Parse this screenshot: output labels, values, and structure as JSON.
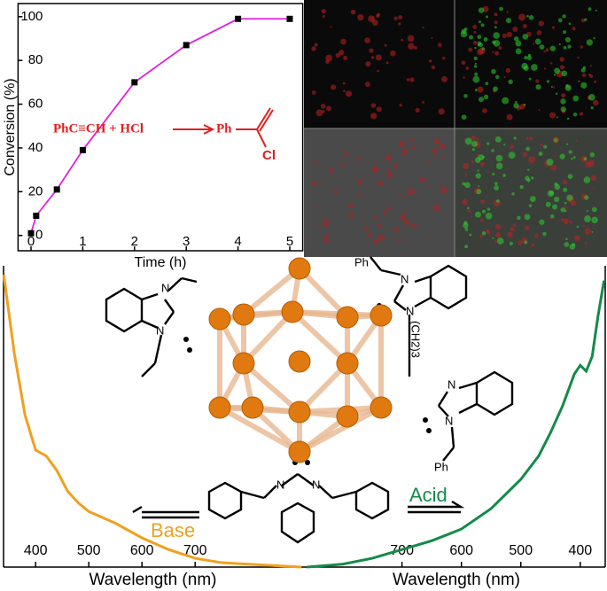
{
  "chart_data": [
    {
      "type": "line",
      "x": [
        0,
        0.1,
        0.5,
        1,
        2,
        3,
        4,
        5
      ],
      "values": [
        1,
        9,
        21,
        39,
        70,
        87,
        99,
        99
      ],
      "color": "#e020e0",
      "marker_color": "#000000",
      "xlim": [
        -0.25,
        5.25
      ],
      "ylim": [
        -7,
        106
      ],
      "xticks": [
        0,
        1,
        2,
        3,
        4,
        5
      ],
      "yticks": [
        0,
        20,
        40,
        60,
        80,
        100
      ],
      "x_label": "Time (h)",
      "y_label": "Conversion (%)",
      "annotation": {
        "reactants": "PhC≡CH + HCl",
        "product": "Ph",
        "substituent": "Cl",
        "color": "#e02020"
      }
    },
    {
      "type": "line",
      "x": [
        340,
        360,
        380,
        400,
        410,
        420,
        440,
        460,
        480,
        500,
        550,
        600,
        650,
        700,
        750,
        800,
        850,
        900
      ],
      "values": [
        1.0,
        0.73,
        0.52,
        0.4,
        0.39,
        0.38,
        0.33,
        0.26,
        0.22,
        0.19,
        0.15,
        0.1,
        0.06,
        0.03,
        0.015,
        0.01,
        0.005,
        0
      ],
      "color": "#f0a020",
      "xlim": [
        333,
        908
      ],
      "ylim": [
        0,
        1
      ],
      "xticks": [
        400,
        500,
        600,
        700
      ],
      "x_label": "Wavelength (nm)",
      "annotation": "Base"
    },
    {
      "type": "line",
      "x": [
        860,
        800,
        750,
        700,
        650,
        600,
        550,
        500,
        470,
        450,
        430,
        410,
        400,
        390,
        380,
        370,
        360
      ],
      "values": [
        0,
        0.01,
        0.03,
        0.06,
        0.09,
        0.13,
        0.2,
        0.3,
        0.38,
        0.46,
        0.55,
        0.66,
        0.69,
        0.67,
        0.72,
        0.86,
        0.98
      ],
      "color": "#148a4a",
      "xlim": [
        862,
        355
      ],
      "ylim": [
        0,
        1
      ],
      "xticks": [
        700,
        600,
        500,
        400
      ],
      "x_label": "Wavelength (nm)",
      "annotation": "Acid"
    }
  ],
  "structures": {
    "labels": [
      "N",
      "N",
      "Ph",
      "N",
      "N",
      "(CH2)3",
      "N",
      "N",
      "Ph",
      "N",
      "N"
    ]
  }
}
